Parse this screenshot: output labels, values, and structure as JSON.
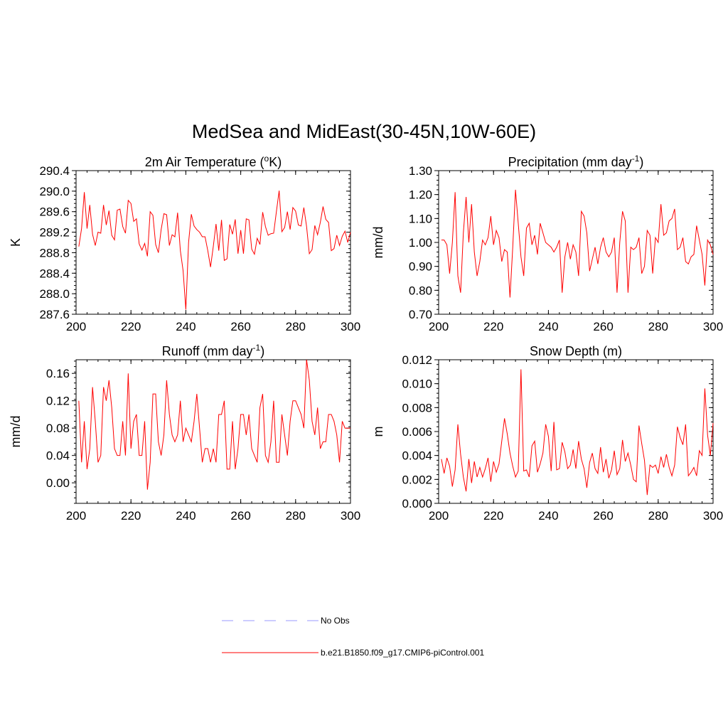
{
  "main_title": "MedSea and MidEast(30-45N,10W-60E)",
  "colors": {
    "series": "#ff0000",
    "obs": "#9999ff",
    "axis": "#000000"
  },
  "legend": {
    "obs_label": "No Obs",
    "model_label": "b.e21.B1850.f09_g17.CMIP6-piControl.001"
  },
  "chart_data": [
    {
      "type": "line",
      "title": "2m Air Temperature (",
      "title_sup": "o",
      "title_tail": "K)",
      "ylabel": "K",
      "xlim": [
        200,
        300
      ],
      "ylim": [
        287.6,
        290.4
      ],
      "xticks": [
        200,
        220,
        240,
        260,
        280,
        300
      ],
      "xtick_labels": [
        "200",
        "220",
        "240",
        "260",
        "280",
        "300"
      ],
      "yticks": [
        287.6,
        288.0,
        288.4,
        288.8,
        289.2,
        289.6,
        290.0,
        290.4
      ],
      "ytick_labels": [
        "287.6",
        "288.0",
        "288.4",
        "288.8",
        "289.2",
        "289.6",
        "290.0",
        "290.4"
      ],
      "yminor_step": 0.08,
      "x_start": 201,
      "values": [
        288.92,
        289.27,
        289.98,
        289.27,
        289.73,
        289.16,
        288.94,
        289.2,
        289.18,
        289.73,
        289.34,
        289.62,
        289.14,
        289.05,
        289.63,
        289.65,
        289.31,
        289.18,
        289.82,
        289.76,
        289.41,
        289.46,
        288.97,
        288.85,
        288.98,
        288.73,
        289.6,
        289.53,
        288.96,
        288.8,
        289.25,
        289.56,
        289.54,
        288.94,
        289.15,
        289.11,
        289.58,
        288.84,
        288.45,
        287.69,
        289.0,
        289.55,
        289.32,
        289.25,
        289.2,
        289.11,
        289.11,
        288.84,
        288.52,
        288.92,
        289.36,
        288.84,
        289.44,
        288.65,
        288.68,
        289.35,
        289.16,
        289.45,
        288.78,
        289.24,
        288.78,
        289.46,
        289.44,
        288.87,
        288.77,
        289.08,
        288.96,
        289.59,
        289.31,
        289.14,
        289.17,
        289.18,
        289.6,
        290.01,
        289.21,
        289.29,
        289.6,
        289.25,
        289.68,
        289.61,
        289.34,
        289.32,
        289.68,
        289.31,
        288.78,
        288.86,
        289.33,
        289.15,
        289.39,
        289.7,
        289.45,
        289.39,
        288.84,
        288.88,
        289.14,
        288.94,
        289.12,
        289.22,
        289.0,
        289.2
      ]
    },
    {
      "type": "line",
      "title": "Precipitation (mm day",
      "title_sup": "-1",
      "title_tail": ")",
      "ylabel": "mm/d",
      "xlim": [
        200,
        300
      ],
      "ylim": [
        0.7,
        1.3
      ],
      "xticks": [
        200,
        220,
        240,
        260,
        280,
        300
      ],
      "xtick_labels": [
        "200",
        "220",
        "240",
        "260",
        "280",
        "300"
      ],
      "yticks": [
        0.7,
        0.8,
        0.9,
        1.0,
        1.1,
        1.2,
        1.3
      ],
      "ytick_labels": [
        "0.70",
        "0.80",
        "0.90",
        "1.00",
        "1.10",
        "1.20",
        "1.30"
      ],
      "yminor_step": 0.02,
      "x_start": 201,
      "values": [
        1.01,
        1.01,
        0.99,
        0.87,
        1.0,
        1.21,
        0.86,
        0.79,
        1.04,
        1.19,
        1.0,
        1.16,
        0.96,
        0.86,
        0.92,
        1.01,
        0.99,
        1.02,
        1.11,
        0.99,
        1.05,
        1.02,
        0.92,
        0.97,
        0.96,
        0.77,
        0.98,
        1.22,
        1.08,
        0.94,
        0.86,
        1.06,
        1.08,
        0.99,
        1.03,
        0.95,
        1.08,
        1.04,
        1.0,
        0.99,
        0.98,
        0.96,
        0.98,
        1.01,
        0.79,
        0.94,
        1.0,
        0.93,
        0.99,
        0.96,
        0.86,
        1.13,
        1.11,
        1.04,
        0.88,
        0.93,
        0.98,
        0.91,
        0.98,
        1.02,
        0.96,
        0.94,
        0.96,
        1.02,
        0.79,
        1.0,
        1.13,
        1.09,
        0.79,
        0.98,
        0.97,
        0.98,
        1.02,
        0.87,
        0.9,
        1.05,
        1.03,
        0.87,
        1.02,
        1.0,
        1.16,
        1.03,
        1.04,
        1.09,
        1.1,
        1.14,
        0.97,
        0.98,
        1.02,
        0.92,
        0.91,
        0.94,
        0.95,
        1.07,
        1.01,
        0.95,
        0.82,
        1.01,
        0.99,
        0.95
      ]
    },
    {
      "type": "line",
      "title": "Runoff (mm day",
      "title_sup": "-1",
      "title_tail": ")",
      "ylabel": "mm/d",
      "xlim": [
        200,
        300
      ],
      "ylim": [
        -0.03,
        0.18
      ],
      "xticks": [
        200,
        220,
        240,
        260,
        280,
        300
      ],
      "xtick_labels": [
        "200",
        "220",
        "240",
        "260",
        "280",
        "300"
      ],
      "yticks": [
        0.0,
        0.04,
        0.08,
        0.12,
        0.16
      ],
      "ytick_labels": [
        "0.00",
        "0.04",
        "0.08",
        "0.12",
        "0.16"
      ],
      "yminor_step": 0.008,
      "x_start": 201,
      "values": [
        0.12,
        0.03,
        0.09,
        0.02,
        0.05,
        0.14,
        0.09,
        0.03,
        0.04,
        0.14,
        0.12,
        0.15,
        0.11,
        0.05,
        0.04,
        0.04,
        0.09,
        0.04,
        0.16,
        0.05,
        0.09,
        0.1,
        0.04,
        0.04,
        0.09,
        -0.01,
        0.03,
        0.13,
        0.13,
        0.06,
        0.04,
        0.07,
        0.15,
        0.1,
        0.07,
        0.06,
        0.07,
        0.12,
        0.06,
        0.08,
        0.07,
        0.06,
        0.09,
        0.13,
        0.08,
        0.03,
        0.05,
        0.05,
        0.03,
        0.05,
        0.03,
        0.1,
        0.1,
        0.12,
        0.02,
        0.02,
        0.09,
        0.02,
        0.05,
        0.1,
        0.1,
        0.07,
        0.1,
        0.05,
        0.04,
        0.03,
        0.11,
        0.13,
        0.04,
        0.03,
        0.06,
        0.12,
        0.03,
        0.03,
        0.1,
        0.07,
        0.04,
        0.09,
        0.12,
        0.12,
        0.11,
        0.1,
        0.08,
        0.18,
        0.15,
        0.09,
        0.07,
        0.11,
        0.05,
        0.06,
        0.06,
        0.1,
        0.1,
        0.09,
        0.07,
        0.03,
        0.09,
        0.08,
        0.08,
        0.08
      ]
    },
    {
      "type": "line",
      "title": "Snow Depth (m)",
      "title_sup": "",
      "title_tail": "",
      "ylabel": "m",
      "xlim": [
        200,
        300
      ],
      "ylim": [
        0.0,
        0.012
      ],
      "xticks": [
        200,
        220,
        240,
        260,
        280,
        300
      ],
      "xtick_labels": [
        "200",
        "220",
        "240",
        "260",
        "280",
        "300"
      ],
      "yticks": [
        0.0,
        0.002,
        0.004,
        0.006,
        0.008,
        0.01,
        0.012
      ],
      "ytick_labels": [
        "0.000",
        "0.002",
        "0.004",
        "0.006",
        "0.008",
        "0.010",
        "0.012"
      ],
      "yminor_step": 0.0004,
      "x_start": 201,
      "values": [
        0.0037,
        0.0025,
        0.0038,
        0.0031,
        0.0014,
        0.0028,
        0.0066,
        0.0041,
        0.0022,
        0.001,
        0.0037,
        0.0017,
        0.0035,
        0.0022,
        0.003,
        0.0022,
        0.0029,
        0.0038,
        0.0018,
        0.0035,
        0.0026,
        0.0033,
        0.0052,
        0.0071,
        0.0058,
        0.0042,
        0.0031,
        0.0022,
        0.0027,
        0.0112,
        0.0027,
        0.0028,
        0.0022,
        0.0048,
        0.0052,
        0.0026,
        0.0033,
        0.0042,
        0.0066,
        0.0056,
        0.0027,
        0.0068,
        0.0028,
        0.0029,
        0.0051,
        0.0043,
        0.0029,
        0.0032,
        0.0045,
        0.0029,
        0.0052,
        0.0037,
        0.0029,
        0.0013,
        0.0034,
        0.0042,
        0.0029,
        0.0025,
        0.0047,
        0.0026,
        0.0037,
        0.0021,
        0.0028,
        0.0044,
        0.0024,
        0.0029,
        0.0053,
        0.0035,
        0.0042,
        0.0032,
        0.002,
        0.0018,
        0.0065,
        0.005,
        0.0036,
        0.0007,
        0.0032,
        0.003,
        0.0032,
        0.0025,
        0.0039,
        0.003,
        0.0041,
        0.003,
        0.0023,
        0.0032,
        0.0064,
        0.0055,
        0.0049,
        0.0066,
        0.0023,
        0.0026,
        0.003,
        0.0023,
        0.0044,
        0.004,
        0.0096,
        0.0057,
        0.004,
        0.0067
      ]
    }
  ]
}
